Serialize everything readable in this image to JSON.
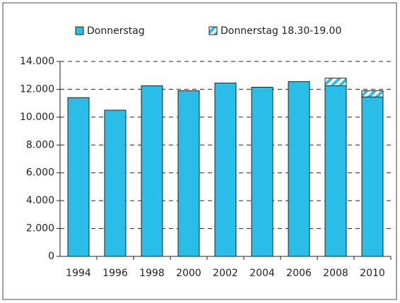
{
  "chart_data": {
    "type": "stacked_bar",
    "categories": [
      "1994",
      "1996",
      "1998",
      "2000",
      "2002",
      "2004",
      "2006",
      "2008",
      "2010"
    ],
    "series": [
      {
        "name": "Donnerstag",
        "color": "#29bde8",
        "values": [
          11400,
          10500,
          12250,
          11900,
          12450,
          12150,
          12550,
          12250,
          11450
        ]
      },
      {
        "name": "Donnerstag 18.30-19.00",
        "color": "#29bde8",
        "pattern": "hatched",
        "values": [
          0,
          0,
          0,
          0,
          0,
          0,
          0,
          550,
          450
        ]
      }
    ],
    "ylim": [
      0,
      14000
    ],
    "yticks": [
      0,
      {
        "value": 2000,
        "label": "2.000"
      },
      {
        "value": 4000,
        "label": "4.000"
      },
      {
        "value": 6000,
        "label": "6.000"
      },
      {
        "value": 8000,
        "label": "8.000"
      },
      {
        "value": 10000,
        "label": "10.000"
      },
      {
        "value": 12000,
        "label": "12.000"
      },
      {
        "value": 14000,
        "label": "14.000"
      }
    ],
    "grid": true,
    "legend": "top"
  }
}
